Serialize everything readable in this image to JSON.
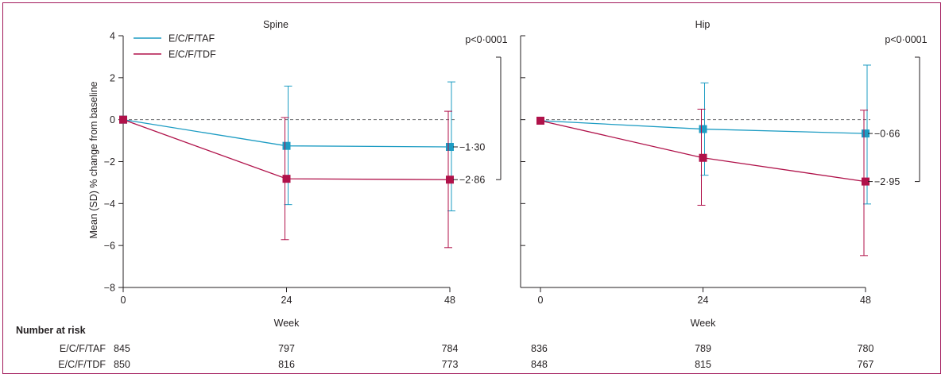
{
  "colors": {
    "taf": "#1d9cc3",
    "tdf": "#b0124a",
    "frame": "#a2195b",
    "axis": "#231f20",
    "reference": "#6d6e71"
  },
  "legend": {
    "taf": "E/C/F/TAF",
    "tdf": "E/C/F/TDF"
  },
  "risk_table": {
    "title": "Number at risk",
    "rows": [
      {
        "label": "E/C/F/TAF",
        "spine": [
          "845",
          "797",
          "784"
        ],
        "hip": [
          "836",
          "789",
          "780"
        ]
      },
      {
        "label": "E/C/F/TDF",
        "spine": [
          "850",
          "816",
          "773"
        ],
        "hip": [
          "848",
          "815",
          "767"
        ]
      }
    ]
  },
  "chart_data": [
    {
      "type": "line",
      "title": "Spine",
      "xlabel": "Week",
      "ylabel": "Mean (SD) % change from baseline",
      "x": [
        0,
        24,
        48
      ],
      "x_ticks": [
        "0",
        "24",
        "48"
      ],
      "y_ticks": [
        "4",
        "2",
        "0",
        "−2",
        "−4",
        "−6",
        "−8"
      ],
      "ylim": [
        -8,
        4
      ],
      "reference_line": 0,
      "series": [
        {
          "name": "E/C/F/TAF",
          "values": [
            0,
            -1.25,
            -1.3
          ],
          "sd_upper": [
            null,
            1.6,
            1.8
          ],
          "sd_lower": [
            null,
            -4.05,
            -4.35
          ],
          "end_label": "−1·30"
        },
        {
          "name": "E/C/F/TDF",
          "values": [
            0,
            -2.82,
            -2.86
          ],
          "sd_upper": [
            null,
            0.1,
            0.4
          ],
          "sd_lower": [
            null,
            -5.72,
            -6.1
          ],
          "end_label": "−2·86"
        }
      ],
      "p_value": "p<0·0001"
    },
    {
      "type": "line",
      "title": "Hip",
      "xlabel": "Week",
      "ylabel": "",
      "x": [
        0,
        24,
        48
      ],
      "x_ticks": [
        "0",
        "24",
        "48"
      ],
      "y_ticks": [],
      "ylim": [
        -8,
        4
      ],
      "reference_line": 0,
      "series": [
        {
          "name": "E/C/F/TAF",
          "values": [
            -0.05,
            -0.45,
            -0.66
          ],
          "sd_upper": [
            null,
            1.75,
            2.6
          ],
          "sd_lower": [
            null,
            -2.65,
            -4.02
          ],
          "end_label": "−0·66"
        },
        {
          "name": "E/C/F/TDF",
          "values": [
            -0.05,
            -1.82,
            -2.95
          ],
          "sd_upper": [
            null,
            0.5,
            0.45
          ],
          "sd_lower": [
            null,
            -4.08,
            -6.48
          ],
          "end_label": "−2·95"
        }
      ],
      "p_value": "p<0·0001"
    }
  ]
}
